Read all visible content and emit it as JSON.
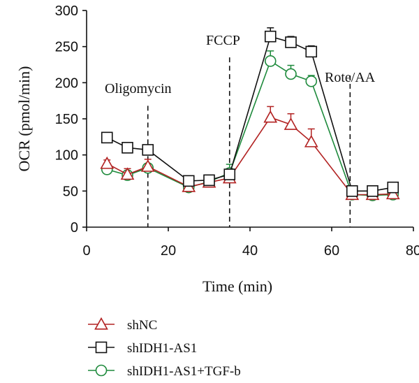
{
  "chart_data": {
    "type": "line",
    "title": "",
    "xlabel": "Time (min)",
    "ylabel": "OCR (pmol/min)",
    "xlim": [
      0,
      80
    ],
    "ylim": [
      0,
      300
    ],
    "xticks": [
      0,
      20,
      40,
      60,
      80
    ],
    "yticks": [
      0,
      50,
      100,
      150,
      200,
      250,
      300
    ],
    "grid": false,
    "annotations": [
      {
        "label": "Oligomycin",
        "x": 15
      },
      {
        "label": "FCCP",
        "x": 35
      },
      {
        "label": "Rote/AA",
        "x": 64.5
      }
    ],
    "series": [
      {
        "name": "shNC",
        "color": "#b22222",
        "marker": "triangle",
        "x": [
          5,
          10,
          15,
          25,
          30,
          35,
          45,
          50,
          55,
          65,
          70,
          75
        ],
        "values": [
          88,
          73,
          84,
          56,
          62,
          68,
          152,
          142,
          118,
          45,
          45,
          46
        ],
        "errors": [
          5,
          8,
          10,
          4,
          6,
          12,
          15,
          15,
          18,
          5,
          5,
          8
        ]
      },
      {
        "name": "shIDH1-AS1",
        "color": "#111111",
        "marker": "square",
        "x": [
          5,
          10,
          15,
          25,
          30,
          35,
          45,
          50,
          55,
          65,
          70,
          75
        ],
        "values": [
          124,
          110,
          107,
          64,
          65,
          73,
          264,
          256,
          243,
          50,
          50,
          55
        ],
        "errors": [
          3,
          3,
          6,
          3,
          3,
          6,
          12,
          8,
          8,
          3,
          3,
          3
        ]
      },
      {
        "name": "shIDH1-AS1+TGF-b",
        "color": "#1e8a3c",
        "marker": "circle",
        "x": [
          5,
          10,
          15,
          25,
          30,
          35,
          45,
          50,
          55,
          65,
          70,
          75
        ],
        "values": [
          80,
          72,
          82,
          55,
          63,
          75,
          230,
          212,
          202,
          45,
          44,
          45
        ],
        "errors": [
          3,
          3,
          4,
          3,
          3,
          12,
          14,
          12,
          8,
          3,
          3,
          3
        ]
      }
    ]
  }
}
